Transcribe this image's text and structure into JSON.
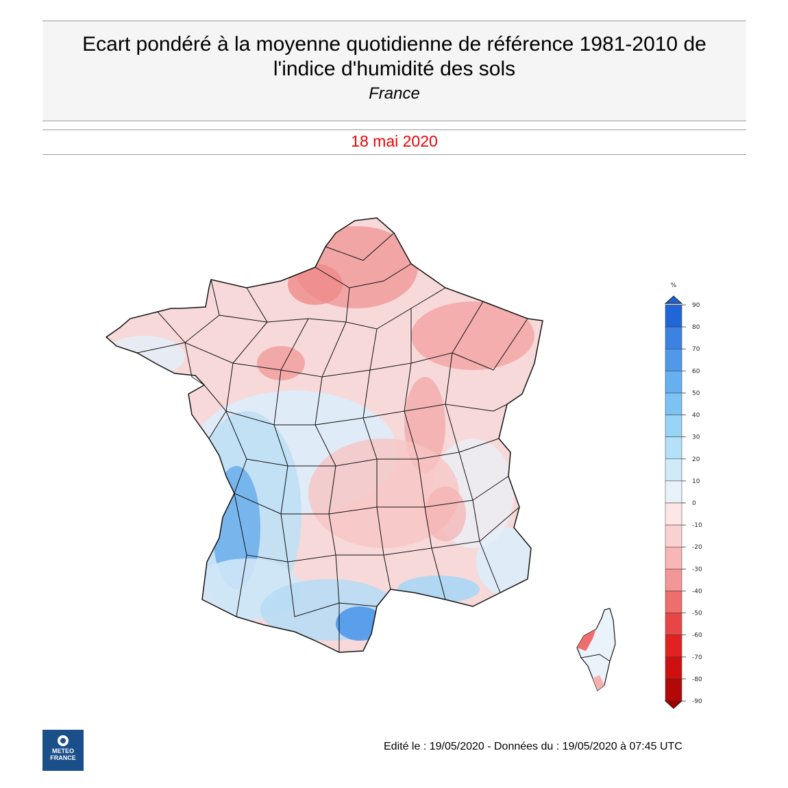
{
  "header": {
    "title_line1": "Ecart pondéré à la moyenne quotidienne de référence 1981-2010 de",
    "title_line2": "l'indice d'humidité des sols",
    "region": "France",
    "date": "18 mai 2020"
  },
  "legend": {
    "unit": "%",
    "ticks": [
      "90",
      "80",
      "70",
      "60",
      "50",
      "40",
      "30",
      "20",
      "10",
      "0",
      "-10",
      "-20",
      "-30",
      "-40",
      "-50",
      "-60",
      "-70",
      "-80",
      "-90"
    ],
    "colors": [
      "#2166d6",
      "#3b82e3",
      "#4f98ea",
      "#66b0f0",
      "#7cc3f4",
      "#98d4f6",
      "#b4e1f8",
      "#cfeaf8",
      "#e8f2fb",
      "#fde6e6",
      "#fbd0d0",
      "#f8b6b6",
      "#f39696",
      "#ee6e6e",
      "#e84646",
      "#e22222",
      "#cf1010",
      "#b20808"
    ],
    "top_arrow_color": "#1f5fd0",
    "bottom_arrow_color": "#a00000"
  },
  "map": {
    "base_fill": "#f6d6d6",
    "dept_stroke": "#111111"
  },
  "footer": {
    "logo_line1": "METEO",
    "logo_line2": "FRANCE",
    "edit_text": "Edité le : 19/05/2020 - Données du : 19/05/2020 à 07:45 UTC"
  }
}
